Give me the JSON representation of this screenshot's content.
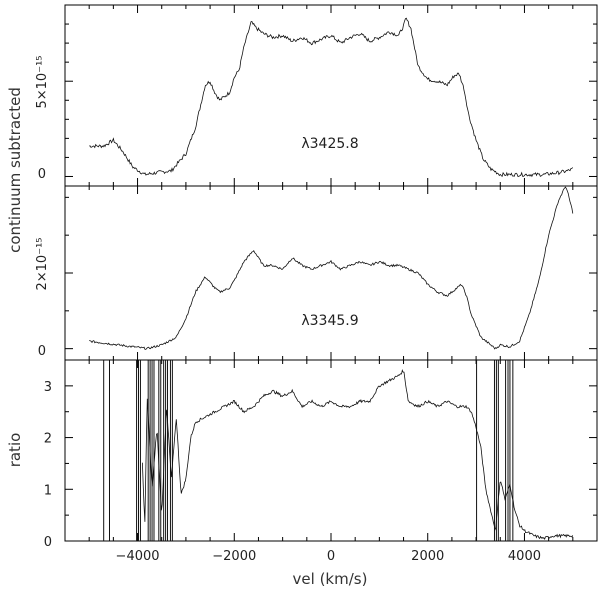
{
  "chart_data": [
    {
      "type": "line",
      "panel": "top",
      "annotation": "λ3425.8",
      "ytick_labels": [
        "0",
        "5×10⁻¹⁵"
      ],
      "yticks": [
        0,
        5
      ],
      "ylim": [
        -0.5,
        9.0
      ],
      "series": [
        {
          "name": "λ3425.8",
          "x": [
            -5000,
            -4700,
            -4500,
            -4300,
            -4100,
            -3850,
            -3600,
            -3300,
            -3000,
            -2800,
            -2600,
            -2500,
            -2400,
            -2300,
            -2200,
            -2100,
            -2000,
            -1900,
            -1800,
            -1650,
            -1550,
            -1400,
            -1200,
            -1000,
            -800,
            -600,
            -400,
            -200,
            0,
            200,
            400,
            600,
            800,
            1000,
            1200,
            1400,
            1500,
            1550,
            1650,
            1800,
            2000,
            2200,
            2400,
            2550,
            2650,
            2750,
            2850,
            3000,
            3150,
            3300,
            3500,
            3800,
            4100,
            4400,
            4700,
            4900,
            5000
          ],
          "y": [
            1.6,
            1.6,
            1.9,
            1.3,
            0.5,
            0.1,
            0.2,
            0.3,
            1.2,
            2.6,
            4.8,
            5.0,
            4.4,
            4.0,
            4.2,
            4.4,
            5.2,
            5.6,
            6.8,
            8.1,
            7.8,
            7.5,
            7.3,
            7.4,
            7.1,
            7.3,
            7.0,
            7.2,
            7.4,
            7.0,
            7.3,
            7.5,
            7.1,
            7.3,
            7.6,
            7.4,
            7.9,
            8.3,
            7.8,
            5.8,
            5.1,
            5.0,
            4.8,
            5.3,
            5.4,
            4.6,
            3.2,
            1.9,
            0.9,
            0.4,
            0.1,
            0.1,
            0.1,
            0.1,
            0.2,
            0.3,
            0.4
          ]
        }
      ]
    },
    {
      "type": "line",
      "panel": "middle",
      "annotation": "λ3345.9",
      "ytick_labels": [
        "0",
        "2×10⁻¹⁵"
      ],
      "yticks": [
        0,
        2
      ],
      "ylim": [
        -0.3,
        4.3
      ],
      "series": [
        {
          "name": "λ3345.9",
          "x": [
            -5000,
            -4700,
            -4400,
            -4100,
            -3800,
            -3500,
            -3200,
            -3000,
            -2800,
            -2600,
            -2400,
            -2300,
            -2100,
            -2000,
            -1800,
            -1600,
            -1500,
            -1400,
            -1200,
            -1000,
            -800,
            -600,
            -400,
            -200,
            0,
            200,
            400,
            600,
            800,
            1000,
            1200,
            1400,
            1600,
            1800,
            2000,
            2200,
            2400,
            2600,
            2700,
            2800,
            2900,
            3100,
            3300,
            3400,
            3500,
            3700,
            3900,
            4100,
            4300,
            4500,
            4700,
            4850,
            4900,
            5000
          ],
          "y": [
            0.2,
            0.15,
            0.1,
            0.05,
            0.0,
            0.1,
            0.3,
            0.8,
            1.5,
            1.9,
            1.6,
            1.5,
            1.6,
            1.8,
            2.3,
            2.6,
            2.4,
            2.2,
            2.2,
            2.1,
            2.4,
            2.2,
            2.1,
            2.2,
            2.3,
            2.1,
            2.2,
            2.3,
            2.2,
            2.3,
            2.2,
            2.2,
            2.1,
            2.0,
            1.7,
            1.5,
            1.4,
            1.6,
            1.7,
            1.4,
            0.9,
            0.3,
            0.1,
            0.0,
            0.1,
            0.05,
            0.2,
            0.9,
            1.8,
            3.0,
            3.9,
            4.3,
            4.1,
            3.6
          ]
        }
      ]
    },
    {
      "type": "line",
      "panel": "bottom",
      "ylabel": "ratio",
      "xlabel": "vel (km/s)",
      "ytick_labels": [
        "0",
        "1",
        "2",
        "3"
      ],
      "yticks": [
        0,
        1,
        2,
        3
      ],
      "xtick_labels": [
        "−4000",
        "−2000",
        "0",
        "2000",
        "4000"
      ],
      "xticks": [
        -4000,
        -2000,
        0,
        2000,
        4000
      ],
      "ylim": [
        0,
        3.5
      ],
      "series": [
        {
          "name": "ratio",
          "x": [
            -3900,
            -3850,
            -3800,
            -3700,
            -3600,
            -3500,
            -3400,
            -3300,
            -3200,
            -3100,
            -3000,
            -2900,
            -2800,
            -2600,
            -2400,
            -2200,
            -2000,
            -1800,
            -1600,
            -1400,
            -1200,
            -1000,
            -800,
            -600,
            -400,
            -200,
            0,
            200,
            400,
            600,
            800,
            1000,
            1200,
            1400,
            1500,
            1600,
            1800,
            2000,
            2200,
            2400,
            2600,
            2800,
            2900,
            3000,
            3100,
            3200,
            3300,
            3400,
            3500,
            3600,
            3700,
            3800,
            3900,
            4000,
            4200,
            4400,
            4600,
            4800,
            5000
          ],
          "y": [
            1.5,
            0.3,
            2.8,
            1.0,
            2.2,
            0.5,
            2.6,
            1.2,
            2.4,
            0.9,
            1.2,
            2.0,
            2.3,
            2.4,
            2.5,
            2.6,
            2.7,
            2.5,
            2.6,
            2.8,
            2.9,
            2.8,
            2.9,
            2.6,
            2.7,
            2.6,
            2.7,
            2.6,
            2.6,
            2.7,
            2.7,
            3.0,
            3.1,
            3.2,
            3.3,
            2.7,
            2.6,
            2.7,
            2.6,
            2.7,
            2.6,
            2.6,
            2.5,
            2.2,
            1.8,
            1.0,
            0.6,
            0.2,
            1.2,
            0.8,
            1.1,
            0.6,
            0.3,
            0.2,
            0.1,
            0.05,
            0.1,
            0.1,
            0.1
          ]
        }
      ],
      "spikes_x": [
        -4700,
        -4580,
        -4020,
        -3980,
        -3940,
        -3780,
        -3740,
        -3700,
        -3660,
        -3560,
        -3520,
        -3460,
        -3420,
        -3380,
        -3320,
        -3280,
        3010,
        3380,
        3420,
        3460,
        3610,
        3660,
        3700,
        3760
      ],
      "spike_tops": [
        3.5,
        3.5,
        3.5,
        3.5,
        3.5,
        3.5,
        3.5,
        3.5,
        3.5,
        3.5,
        3.5,
        3.5,
        3.5,
        3.5,
        3.5,
        3.5,
        3.5,
        3.5,
        3.5,
        3.5,
        3.5,
        3.5,
        3.5,
        3.5
      ]
    }
  ],
  "shared": {
    "ylabel": "continuum subtracted",
    "xlim": [
      -5500,
      5500
    ]
  }
}
